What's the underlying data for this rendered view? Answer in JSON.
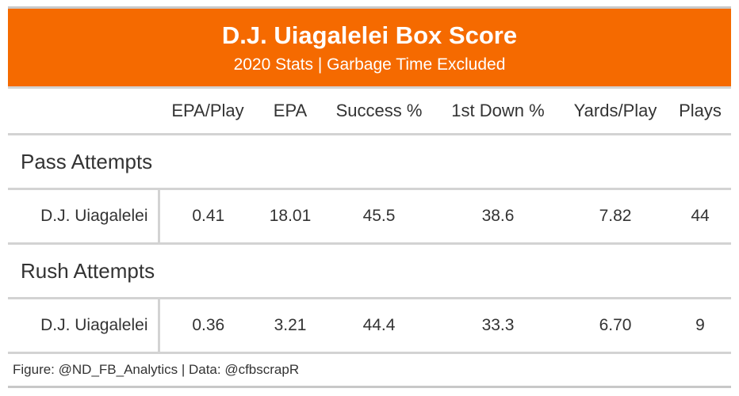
{
  "title": "D.J. Uiagalelei Box Score",
  "subtitle": "2020 Stats | Garbage Time Excluded",
  "columns": [
    "EPA/Play",
    "EPA",
    "Success %",
    "1st Down %",
    "Yards/Play",
    "Plays"
  ],
  "groups": [
    {
      "label": "Pass Attempts",
      "player": "D.J. Uiagalelei",
      "values": [
        "0.41",
        "18.01",
        "45.5",
        "38.6",
        "7.82",
        "44"
      ]
    },
    {
      "label": "Rush Attempts",
      "player": "D.J. Uiagalelei",
      "values": [
        "0.36",
        "3.21",
        "44.4",
        "33.3",
        "6.70",
        "9"
      ]
    }
  ],
  "footer": "Figure: @ND_FB_Analytics | Data: @cfbscrapR",
  "colors": {
    "banner": "#f56a00",
    "banner_text": "#ffffff",
    "rule": "#d3d3d3",
    "text": "#333333"
  },
  "chart_data": {
    "type": "table",
    "title": "D.J. Uiagalelei Box Score",
    "subtitle": "2020 Stats | Garbage Time Excluded",
    "columns": [
      "EPA/Play",
      "EPA",
      "Success %",
      "1st Down %",
      "Yards/Play",
      "Plays"
    ],
    "rows": [
      {
        "group": "Pass Attempts",
        "player": "D.J. Uiagalelei",
        "values": [
          0.41,
          18.01,
          45.5,
          38.6,
          7.82,
          44
        ]
      },
      {
        "group": "Rush Attempts",
        "player": "D.J. Uiagalelei",
        "values": [
          0.36,
          3.21,
          44.4,
          33.3,
          6.7,
          9
        ]
      }
    ],
    "source": "Figure: @ND_FB_Analytics | Data: @cfbscrapR"
  }
}
